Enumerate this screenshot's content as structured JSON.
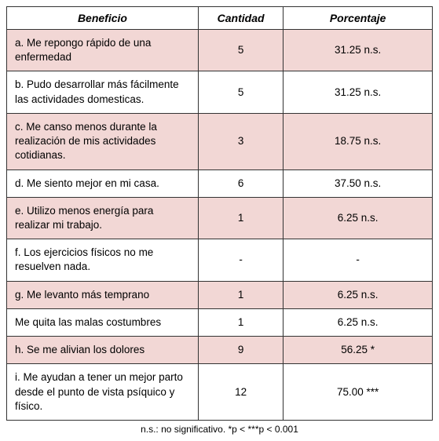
{
  "table": {
    "columns": [
      "Beneficio",
      "Cantidad",
      "Porcentaje"
    ],
    "col_widths_pct": [
      45,
      20,
      35
    ],
    "header_fontsize": 14,
    "cell_fontsize": 13.5,
    "row_alt_colors": [
      "#f2d7d5",
      "#ffffff"
    ],
    "border_color": "#333333",
    "rows": [
      {
        "benefit": "a. Me repongo rápido de una enfermedad",
        "cantidad": "5",
        "porcentaje": "31.25 n.s."
      },
      {
        "benefit": "b. Pudo desarrollar más fácilmente las actividades domesticas.",
        "cantidad": "5",
        "porcentaje": "31.25 n.s."
      },
      {
        "benefit": "c. Me canso menos durante la realización de mis actividades cotidianas.",
        "cantidad": "3",
        "porcentaje": "18.75 n.s."
      },
      {
        "benefit": "d. Me siento mejor en mi casa.",
        "cantidad": "6",
        "porcentaje": "37.50 n.s."
      },
      {
        "benefit": "e. Utilizo menos energía para realizar mi trabajo.",
        "cantidad": "1",
        "porcentaje": "6.25 n.s."
      },
      {
        "benefit": "f. Los ejercicios físicos no me resuelven nada.",
        "cantidad": "-",
        "porcentaje": "-"
      },
      {
        "benefit": "g. Me levanto más temprano",
        "cantidad": "1",
        "porcentaje": "6.25 n.s."
      },
      {
        "benefit": "Me quita las malas costumbres",
        "cantidad": "1",
        "porcentaje": "6.25 n.s."
      },
      {
        "benefit": "h. Se me alivian los dolores",
        "cantidad": "9",
        "porcentaje": "56.25 *"
      },
      {
        "benefit": "i. Me ayudan a tener un mejor parto desde el punto de vista psíquico y físico.",
        "cantidad": "12",
        "porcentaje": "75.00 ***"
      }
    ]
  },
  "footnote": "n.s.: no significativo. *p < ***p < 0.001"
}
